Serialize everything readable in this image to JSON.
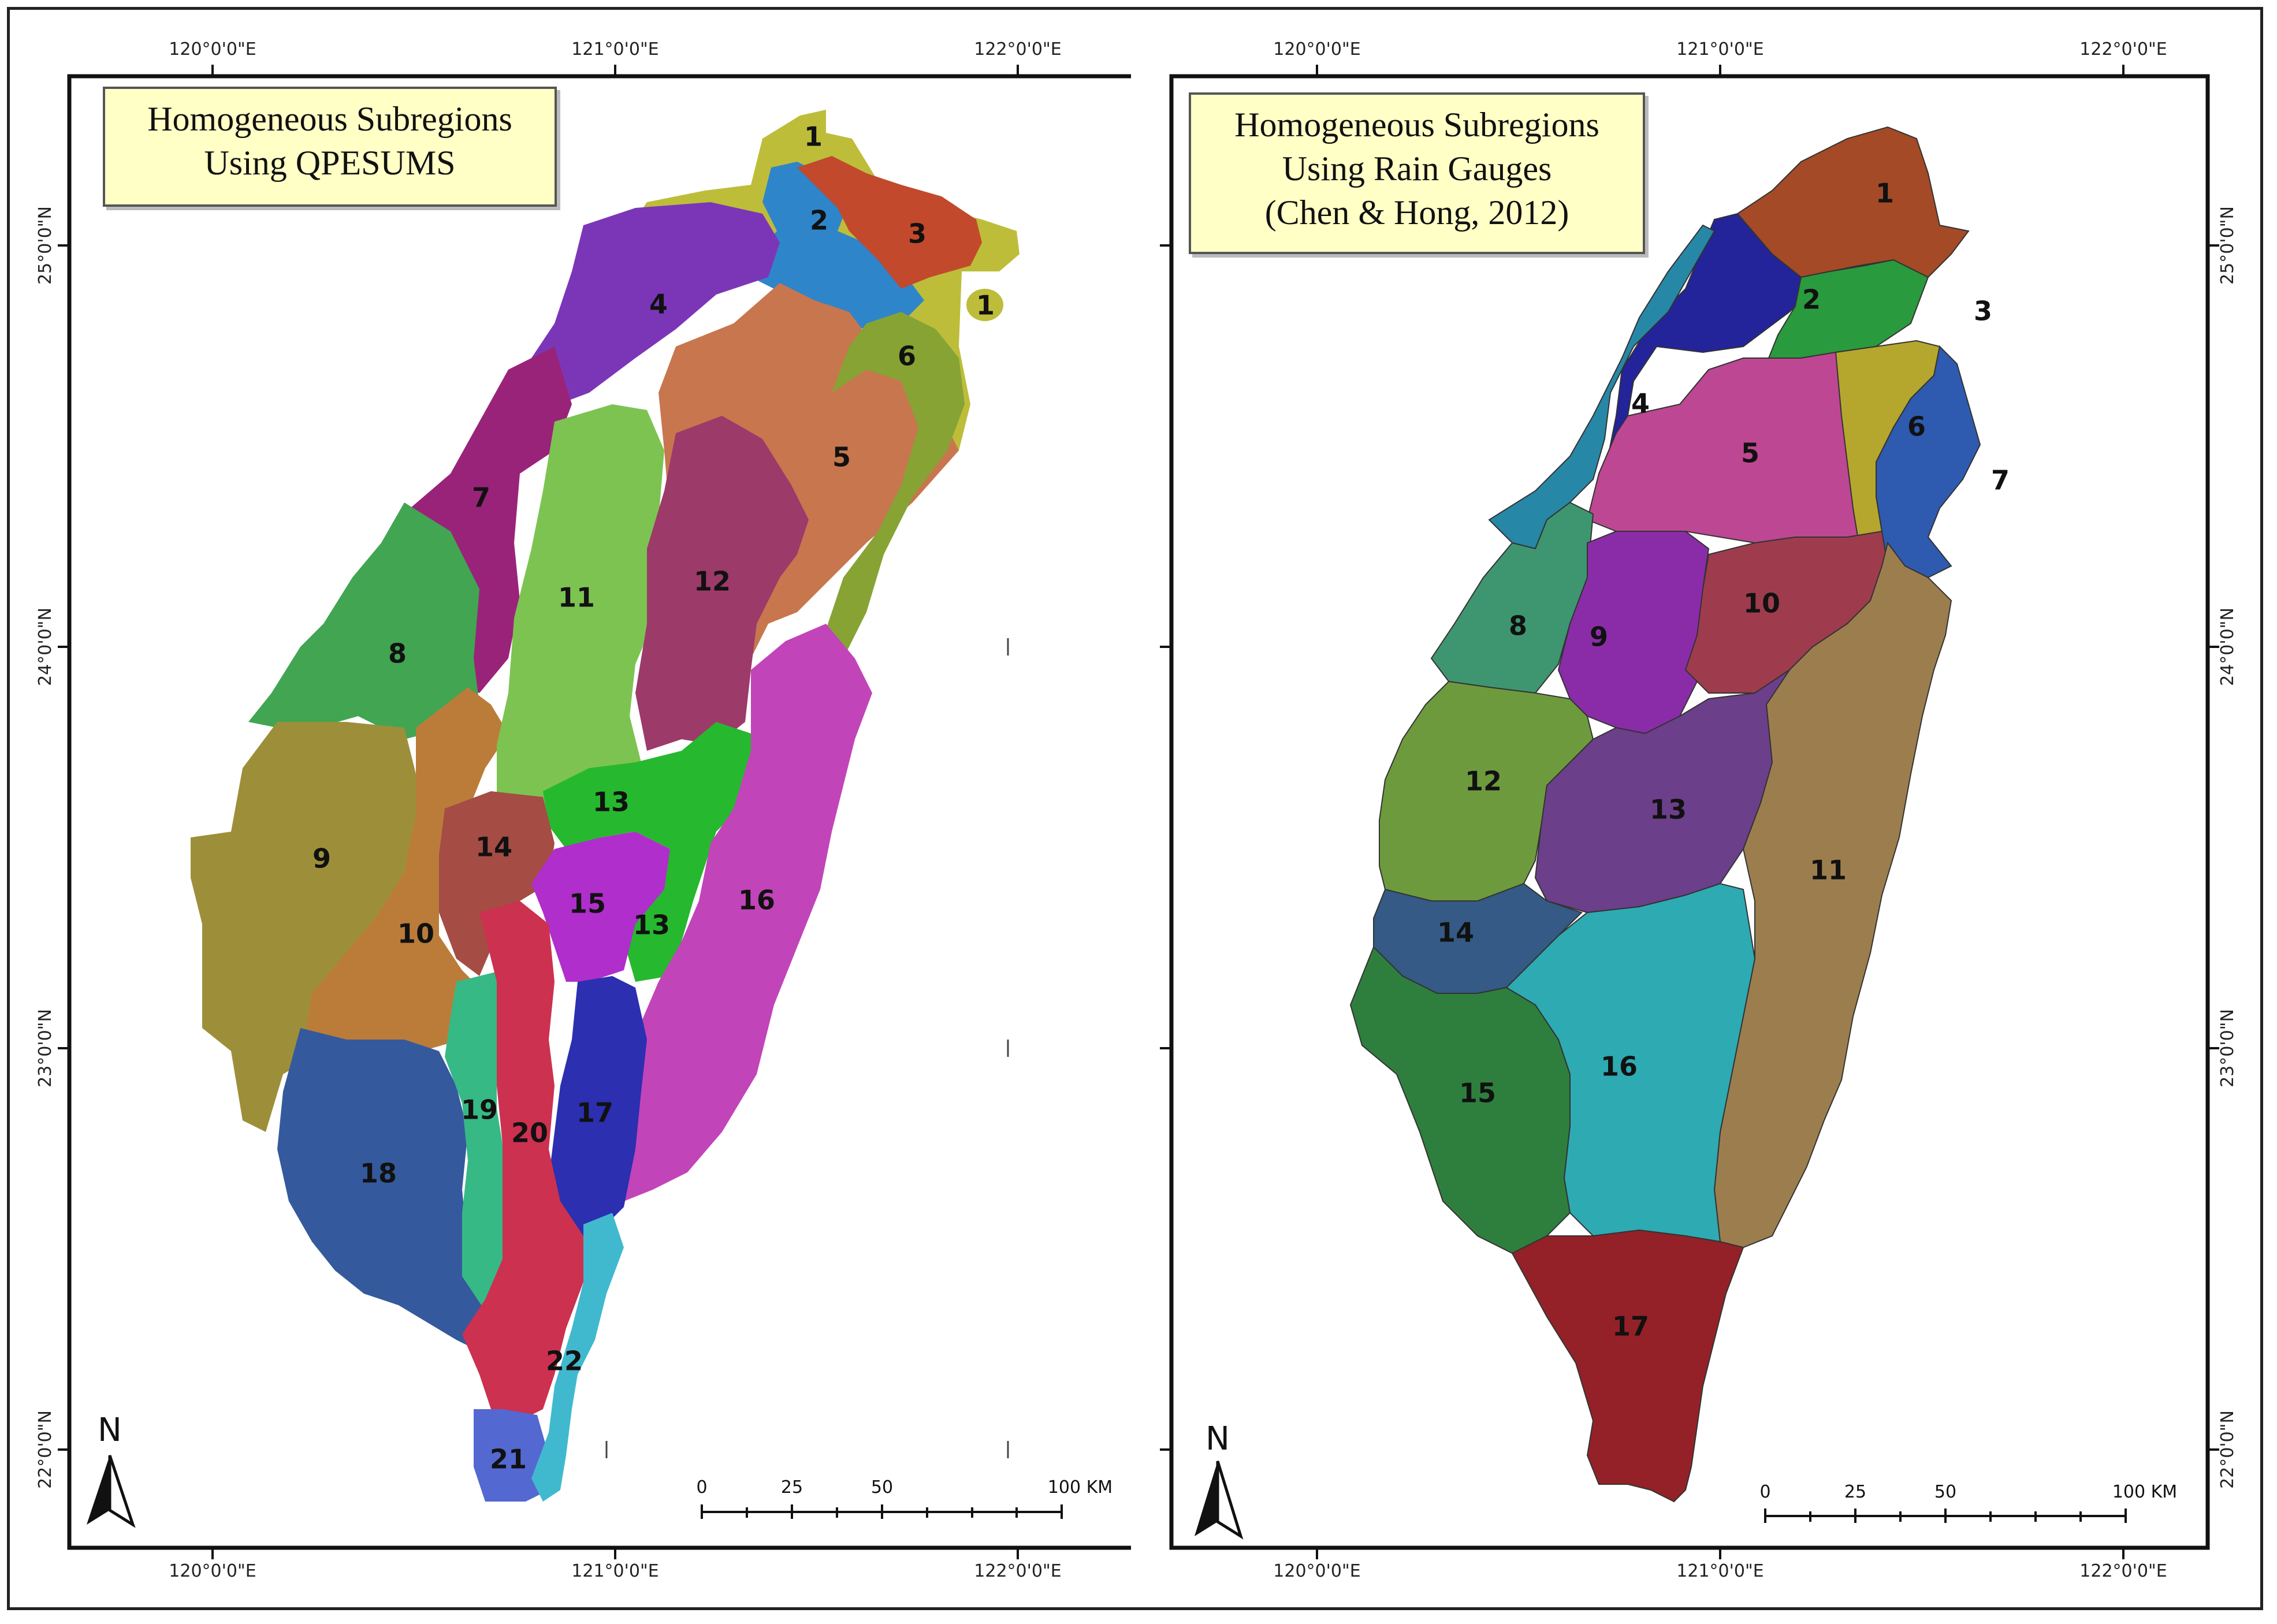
{
  "maps": [
    {
      "title_lines": [
        "Homogeneous Subregions",
        "Using QPESUMS"
      ],
      "top_axis": [
        "120°0'0\"E",
        "121°0'0\"E",
        "122°0'0\"E"
      ],
      "bottom_axis": [
        "120°0'0\"E",
        "121°0'0\"E",
        "122°0'0\"E"
      ],
      "left_axis": [
        "25°0'0\"N",
        "24°0'0\"N",
        "23°0'0\"N",
        "22°0'0\"N"
      ],
      "north_label": "N",
      "scale": {
        "ticks": [
          "0",
          "25",
          "50",
          "100 KM"
        ]
      },
      "regions": [
        {
          "label": "1",
          "color": "#bdbd3a"
        },
        {
          "label": "2",
          "color": "#2f85c9"
        },
        {
          "label": "3",
          "color": "#c2492b"
        },
        {
          "label": "4",
          "color": "#7b36b8"
        },
        {
          "label": "5",
          "color": "#c8764e"
        },
        {
          "label": "6",
          "color": "#86a334"
        },
        {
          "label": "7",
          "color": "#9a237a"
        },
        {
          "label": "8",
          "color": "#41a552"
        },
        {
          "label": "9",
          "color": "#9d8f3a"
        },
        {
          "label": "10",
          "color": "#bb7c3a"
        },
        {
          "label": "11",
          "color": "#7dc352"
        },
        {
          "label": "12",
          "color": "#9c3a6a"
        },
        {
          "label": "13",
          "color": "#26b82e"
        },
        {
          "label": "14",
          "color": "#a54c44"
        },
        {
          "label": "15",
          "color": "#b02ecb"
        },
        {
          "label": "16",
          "color": "#c244b9"
        },
        {
          "label": "17",
          "color": "#2b2fb0"
        },
        {
          "label": "18",
          "color": "#35599d"
        },
        {
          "label": "19",
          "color": "#37b985"
        },
        {
          "label": "20",
          "color": "#cc3150"
        },
        {
          "label": "21",
          "color": "#5468d2"
        },
        {
          "label": "22",
          "color": "#40b9cf"
        }
      ]
    },
    {
      "title_lines": [
        "Homogeneous Subregions",
        "Using Rain Gauges",
        "(Chen & Hong, 2012)"
      ],
      "top_axis": [
        "120°0'0\"E",
        "121°0'0\"E",
        "122°0'0\"E"
      ],
      "bottom_axis": [
        "120°0'0\"E",
        "121°0'0\"E",
        "122°0'0\"E"
      ],
      "right_axis": [
        "25°0'0\"N",
        "24°0'0\"N",
        "23°0'0\"N",
        "22°0'0\"N"
      ],
      "north_label": "N",
      "scale": {
        "ticks": [
          "0",
          "25",
          "50",
          "100 KM"
        ]
      },
      "regions": [
        {
          "label": "1",
          "color": "#a44a26"
        },
        {
          "label": "2",
          "color": "#23239a"
        },
        {
          "label": "3",
          "color": "#2a9a3e"
        },
        {
          "label": "4",
          "color": "#2787a6"
        },
        {
          "label": "5",
          "color": "#bd4792"
        },
        {
          "label": "6",
          "color": "#b5a72e"
        },
        {
          "label": "7",
          "color": "#2e5ab0"
        },
        {
          "label": "8",
          "color": "#3e9671"
        },
        {
          "label": "9",
          "color": "#8a2ca8"
        },
        {
          "label": "10",
          "color": "#9e3c4e"
        },
        {
          "label": "11",
          "color": "#9c7e4e"
        },
        {
          "label": "12",
          "color": "#6e9a3e"
        },
        {
          "label": "13",
          "color": "#6c3f8a"
        },
        {
          "label": "14",
          "color": "#345a85"
        },
        {
          "label": "15",
          "color": "#2e7f3e"
        },
        {
          "label": "16",
          "color": "#2eaab2"
        },
        {
          "label": "17",
          "color": "#942128"
        }
      ]
    }
  ]
}
